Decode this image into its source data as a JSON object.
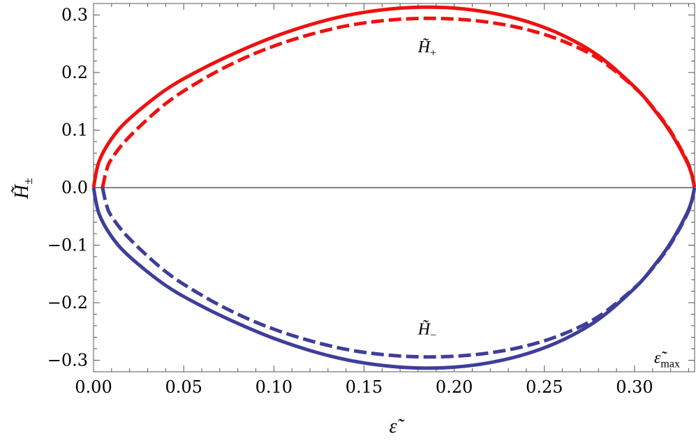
{
  "chart_data": {
    "type": "line",
    "title": "",
    "xlabel": "ε̃",
    "ylabel": "H̃",
    "ylabel_sub": "±",
    "xlim": [
      0,
      0.3333
    ],
    "ylim": [
      -0.32,
      0.32
    ],
    "x_ticks": [
      0.0,
      0.05,
      0.1,
      0.15,
      0.2,
      0.25,
      0.3
    ],
    "x_tick_labels": [
      "0.00",
      "0.05",
      "0.10",
      "0.15",
      "0.20",
      "0.25",
      "0.30"
    ],
    "y_ticks": [
      -0.3,
      -0.2,
      -0.1,
      0.0,
      0.1,
      0.2,
      0.3
    ],
    "y_tick_labels": [
      "−0.3",
      "−0.2",
      "−0.1",
      "0.0",
      "0.1",
      "0.2",
      "0.3"
    ],
    "grid": false,
    "zero_line": true,
    "colors": {
      "plus": "#ee1111",
      "minus": "#3e3e9a"
    },
    "series": [
      {
        "branch": "plus",
        "style": "solid",
        "x": [
          0.0,
          0.003,
          0.01,
          0.02,
          0.04,
          0.06,
          0.08,
          0.1,
          0.12,
          0.14,
          0.16,
          0.18,
          0.2,
          0.22,
          0.24,
          0.26,
          0.28,
          0.3,
          0.31,
          0.32,
          0.33,
          0.3333
        ],
        "y": [
          0.0,
          0.045,
          0.085,
          0.12,
          0.17,
          0.206,
          0.236,
          0.262,
          0.283,
          0.299,
          0.309,
          0.3135,
          0.312,
          0.304,
          0.289,
          0.265,
          0.229,
          0.175,
          0.139,
          0.096,
          0.038,
          0.0
        ]
      },
      {
        "branch": "plus",
        "style": "dashed",
        "x": [
          0.005,
          0.007,
          0.01,
          0.02,
          0.04,
          0.06,
          0.08,
          0.1,
          0.12,
          0.14,
          0.16,
          0.18,
          0.2,
          0.22,
          0.24,
          0.26,
          0.28,
          0.3,
          0.31,
          0.32,
          0.33,
          0.3333
        ],
        "y": [
          0.0,
          0.028,
          0.05,
          0.089,
          0.146,
          0.187,
          0.22,
          0.246,
          0.266,
          0.281,
          0.29,
          0.294,
          0.293,
          0.287,
          0.275,
          0.255,
          0.224,
          0.174,
          0.14,
          0.098,
          0.04,
          0.0
        ]
      },
      {
        "branch": "minus",
        "style": "solid",
        "x": [
          0.0,
          0.003,
          0.01,
          0.02,
          0.04,
          0.06,
          0.08,
          0.1,
          0.12,
          0.14,
          0.16,
          0.18,
          0.2,
          0.22,
          0.24,
          0.26,
          0.28,
          0.3,
          0.31,
          0.32,
          0.33,
          0.3333
        ],
        "y": [
          0.0,
          -0.045,
          -0.085,
          -0.12,
          -0.17,
          -0.206,
          -0.236,
          -0.262,
          -0.283,
          -0.299,
          -0.309,
          -0.3135,
          -0.312,
          -0.304,
          -0.289,
          -0.265,
          -0.229,
          -0.175,
          -0.139,
          -0.096,
          -0.038,
          0.0
        ]
      },
      {
        "branch": "minus",
        "style": "dashed",
        "x": [
          0.005,
          0.007,
          0.01,
          0.02,
          0.04,
          0.06,
          0.08,
          0.1,
          0.12,
          0.14,
          0.16,
          0.18,
          0.2,
          0.22,
          0.24,
          0.26,
          0.28,
          0.3,
          0.31,
          0.32,
          0.33,
          0.3333
        ],
        "y": [
          0.0,
          -0.028,
          -0.05,
          -0.089,
          -0.146,
          -0.187,
          -0.22,
          -0.246,
          -0.266,
          -0.281,
          -0.29,
          -0.294,
          -0.293,
          -0.287,
          -0.275,
          -0.255,
          -0.224,
          -0.174,
          -0.14,
          -0.098,
          -0.04,
          0.0
        ]
      }
    ],
    "annotations": [
      {
        "letter": "H̃",
        "sub": "+",
        "x": 0.185,
        "y": 0.235
      },
      {
        "letter": "H̃",
        "sub": "−",
        "x": 0.185,
        "y": -0.255
      },
      {
        "letter": "ε̃",
        "sub": "max",
        "x": 0.318,
        "y": -0.305
      }
    ]
  }
}
